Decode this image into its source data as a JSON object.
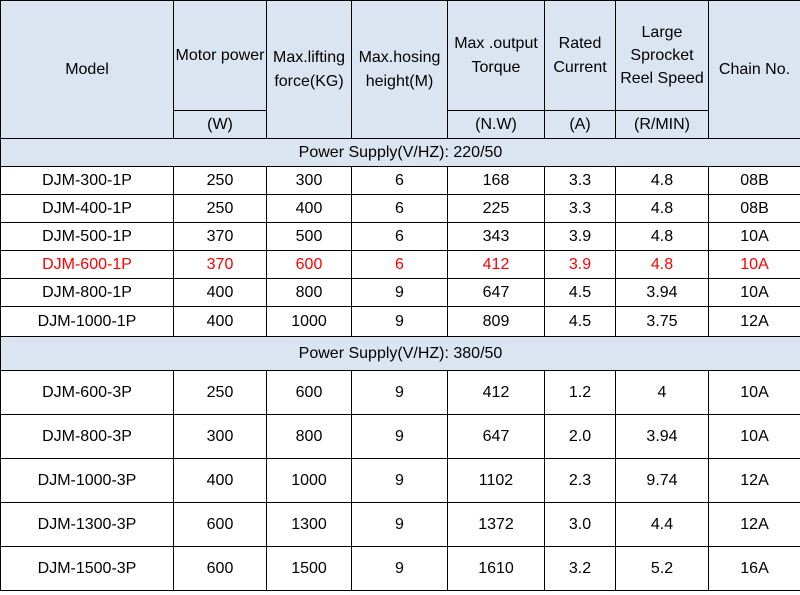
{
  "headers": {
    "model": "Model",
    "motor_power": "Motor power",
    "max_lifting": "Max.lifting force(KG)",
    "max_hosing": "Max.hosing height(M)",
    "max_output": "Max .output Torque",
    "rated_current": "Rated Current",
    "large_sprocket": "Large Sprocket Reel Speed",
    "chain_no": "Chain No."
  },
  "units": {
    "motor_power": "(W)",
    "max_output": "(N.W)",
    "rated_current": "(A)",
    "large_sprocket": "(R/MIN)"
  },
  "sections": [
    {
      "title": "Power Supply(V/HZ): 220/50",
      "rows": [
        {
          "model": "DJM-300-1P",
          "power": "250",
          "lifting": "300",
          "height": "6",
          "torque": "168",
          "current": "3.3",
          "speed": "4.8",
          "chain": "08B",
          "highlight": false
        },
        {
          "model": "DJM-400-1P",
          "power": "250",
          "lifting": "400",
          "height": "6",
          "torque": "225",
          "current": "3.3",
          "speed": "4.8",
          "chain": "08B",
          "highlight": false
        },
        {
          "model": "DJM-500-1P",
          "power": "370",
          "lifting": "500",
          "height": "6",
          "torque": "343",
          "current": "3.9",
          "speed": "4.8",
          "chain": "10A",
          "highlight": false
        },
        {
          "model": "DJM-600-1P",
          "power": "370",
          "lifting": "600",
          "height": "6",
          "torque": "412",
          "current": "3.9",
          "speed": "4.8",
          "chain": "10A",
          "highlight": true
        },
        {
          "model": "DJM-800-1P",
          "power": "400",
          "lifting": "800",
          "height": "9",
          "torque": "647",
          "current": "4.5",
          "speed": "3.94",
          "chain": "10A",
          "highlight": false
        },
        {
          "model": "DJM-1000-1P",
          "power": "400",
          "lifting": "1000",
          "height": "9",
          "torque": "809",
          "current": "4.5",
          "speed": "3.75",
          "chain": "12A",
          "highlight": false
        }
      ]
    },
    {
      "title": "Power Supply(V/HZ): 380/50",
      "rows": [
        {
          "model": "DJM-600-3P",
          "power": "250",
          "lifting": "600",
          "height": "9",
          "torque": "412",
          "current": "1.2",
          "speed": "4",
          "chain": "10A",
          "highlight": false
        },
        {
          "model": "DJM-800-3P",
          "power": "300",
          "lifting": "800",
          "height": "9",
          "torque": "647",
          "current": "2.0",
          "speed": "3.94",
          "chain": "10A",
          "highlight": false
        },
        {
          "model": "DJM-1000-3P",
          "power": "400",
          "lifting": "1000",
          "height": "9",
          "torque": "1102",
          "current": "2.3",
          "speed": "9.74",
          "chain": "12A",
          "highlight": false
        },
        {
          "model": "DJM-1300-3P",
          "power": "600",
          "lifting": "1300",
          "height": "9",
          "torque": "1372",
          "current": "3.0",
          "speed": "4.4",
          "chain": "12A",
          "highlight": false
        },
        {
          "model": "DJM-1500-3P",
          "power": "600",
          "lifting": "1500",
          "height": "9",
          "torque": "1610",
          "current": "3.2",
          "speed": "5.2",
          "chain": "16A",
          "highlight": false
        }
      ]
    }
  ],
  "colors": {
    "header_bg": "#dbe5f1",
    "highlight_text": "#ff0000"
  }
}
